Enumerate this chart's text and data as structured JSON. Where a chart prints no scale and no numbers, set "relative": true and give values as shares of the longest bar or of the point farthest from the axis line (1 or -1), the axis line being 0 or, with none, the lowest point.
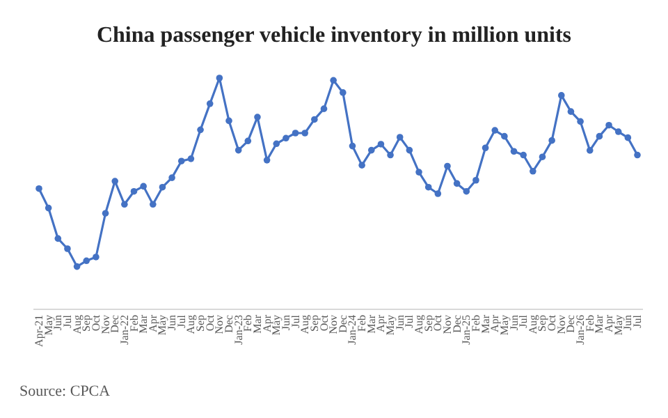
{
  "chart_data": {
    "type": "line",
    "title": "China passenger vehicle inventory in million units",
    "relative": true,
    "marker": "circle",
    "line_style": "solid",
    "annotations": [
      "Source: CPCA"
    ],
    "categories": [
      "Apr-21",
      "May",
      "Jun",
      "Jul",
      "Aug",
      "Sep",
      "Oct",
      "Nov",
      "Dec",
      "Jan-22",
      "Feb",
      "Mar",
      "Apr",
      "May",
      "Jun",
      "Jul",
      "Aug",
      "Sep",
      "Oct",
      "Nov",
      "Dec",
      "Jan-23",
      "Feb",
      "Mar",
      "Apr",
      "May",
      "Jun",
      "Jul",
      "Aug",
      "Sep",
      "Oct",
      "Nov",
      "Dec",
      "Jan-24",
      "Feb",
      "Mar",
      "Apr",
      "May",
      "Jun",
      "Jul",
      "Aug",
      "Sep",
      "Oct",
      "Nov",
      "Dec",
      "Jan-25",
      "Feb",
      "Mar",
      "Apr",
      "May",
      "Jun",
      "Jul",
      "Aug",
      "Sep",
      "Oct",
      "Nov",
      "Dec",
      "Jan-26",
      "Feb",
      "Mar",
      "Apr",
      "May",
      "Jun",
      "Jul"
    ],
    "series": [
      {
        "color": "#4472c4",
        "values": [
          0.522,
          0.438,
          0.306,
          0.262,
          0.185,
          0.21,
          0.226,
          0.415,
          0.554,
          0.454,
          0.51,
          0.532,
          0.454,
          0.528,
          0.569,
          0.641,
          0.651,
          0.776,
          0.889,
          1,
          0.815,
          0.688,
          0.728,
          0.831,
          0.645,
          0.716,
          0.74,
          0.762,
          0.762,
          0.821,
          0.867,
          0.99,
          0.937,
          0.706,
          0.623,
          0.688,
          0.714,
          0.667,
          0.744,
          0.688,
          0.593,
          0.528,
          0.5,
          0.619,
          0.544,
          0.51,
          0.558,
          0.698,
          0.774,
          0.748,
          0.683,
          0.667,
          0.597,
          0.659,
          0.73,
          0.925,
          0.855,
          0.812,
          0.687,
          0.748,
          0.796,
          0.768,
          0.742,
          0.667
        ]
      }
    ]
  }
}
